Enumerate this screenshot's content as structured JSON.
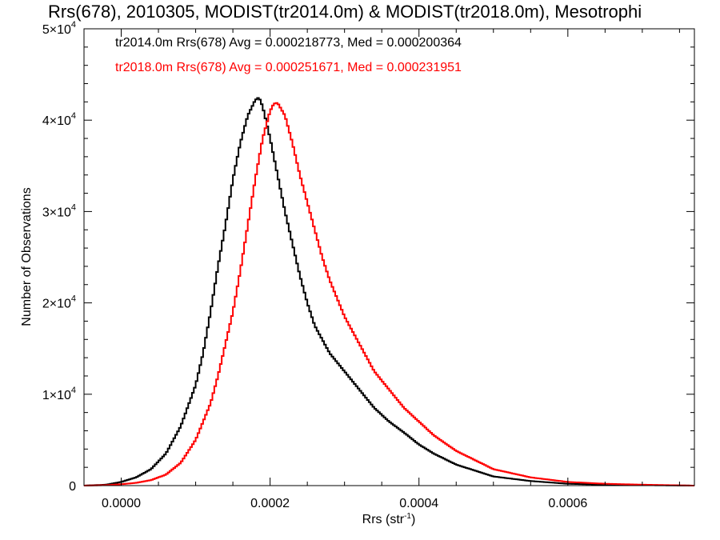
{
  "title": "Rrs(678), 2010305, MODIST(tr2014.0m) & MODIST(tr2018.0m), Mesotrophi",
  "legend": [
    {
      "text": "tr2014.0m Rrs(678) Avg = 0.000218773, Med = 0.000200364",
      "color": "#000000"
    },
    {
      "text": "tr2018.0m Rrs(678) Avg = 0.000251671, Med = 0.000231951",
      "color": "#ff0000"
    }
  ],
  "chart_data": {
    "type": "line",
    "title": "Rrs(678), 2010305, MODIST(tr2014.0m) & MODIST(tr2018.0m), Mesotrophi",
    "xlabel": "Rrs (str⁻¹)",
    "ylabel": "Number of Observations",
    "xlim": [
      -5e-05,
      0.00077
    ],
    "ylim": [
      0,
      50000
    ],
    "x_ticks": [
      0.0,
      0.0002,
      0.0004,
      0.0006
    ],
    "x_tick_labels": [
      "0.0000",
      "0.0002",
      "0.0004",
      "0.0006"
    ],
    "y_ticks": [
      0,
      10000,
      20000,
      30000,
      40000,
      50000
    ],
    "y_tick_labels": [
      {
        "mant": "0",
        "exp": ""
      },
      {
        "mant": "1×10",
        "exp": "4"
      },
      {
        "mant": "2×10",
        "exp": "4"
      },
      {
        "mant": "3×10",
        "exp": "4"
      },
      {
        "mant": "4×10",
        "exp": "4"
      },
      {
        "mant": "5×10",
        "exp": "4"
      }
    ],
    "grid": false,
    "legend_position": "top-left",
    "series": [
      {
        "name": "tr2014.0m",
        "color": "#000000",
        "x": [
          -5e-05,
          -2e-05,
          0.0,
          2e-05,
          4e-05,
          6e-05,
          8e-05,
          0.0001,
          0.00011,
          0.00012,
          0.00013,
          0.00014,
          0.00015,
          0.00016,
          0.00017,
          0.00018,
          0.000185,
          0.00019,
          0.0002,
          0.00021,
          0.00022,
          0.00023,
          0.00024,
          0.00025,
          0.00026,
          0.00027,
          0.00028,
          0.0003,
          0.00032,
          0.00034,
          0.00036,
          0.00038,
          0.0004,
          0.00042,
          0.00045,
          0.0005,
          0.00055,
          0.0006,
          0.00065,
          0.0007,
          0.00077
        ],
        "y": [
          0,
          100,
          400,
          900,
          1800,
          3500,
          6500,
          11000,
          14500,
          19000,
          24000,
          28500,
          33500,
          37500,
          40500,
          42200,
          42500,
          41500,
          38000,
          34000,
          30000,
          26500,
          23000,
          20000,
          17500,
          16000,
          14500,
          12500,
          10500,
          8500,
          7000,
          5800,
          4500,
          3500,
          2300,
          1000,
          500,
          200,
          100,
          50,
          0
        ]
      },
      {
        "name": "tr2018.0m",
        "color": "#ff0000",
        "x": [
          -5e-05,
          -2e-05,
          0.0,
          2e-05,
          4e-05,
          6e-05,
          8e-05,
          0.0001,
          0.00012,
          0.00013,
          0.00014,
          0.00015,
          0.00016,
          0.00017,
          0.00018,
          0.00019,
          0.0002,
          0.000205,
          0.00021,
          0.00022,
          0.00023,
          0.00024,
          0.00025,
          0.00026,
          0.00027,
          0.00028,
          0.00029,
          0.0003,
          0.00032,
          0.00034,
          0.00036,
          0.00038,
          0.0004,
          0.00042,
          0.00045,
          0.0005,
          0.00055,
          0.0006,
          0.00065,
          0.0007,
          0.00077
        ],
        "y": [
          0,
          50,
          150,
          300,
          600,
          1200,
          2500,
          5000,
          9000,
          12000,
          15500,
          19000,
          23500,
          28500,
          33500,
          38000,
          41000,
          41800,
          41900,
          40500,
          37500,
          34000,
          31000,
          28000,
          25000,
          22500,
          20500,
          18500,
          15500,
          12500,
          10500,
          8500,
          7000,
          5500,
          3800,
          1800,
          900,
          400,
          200,
          100,
          0
        ]
      }
    ]
  }
}
